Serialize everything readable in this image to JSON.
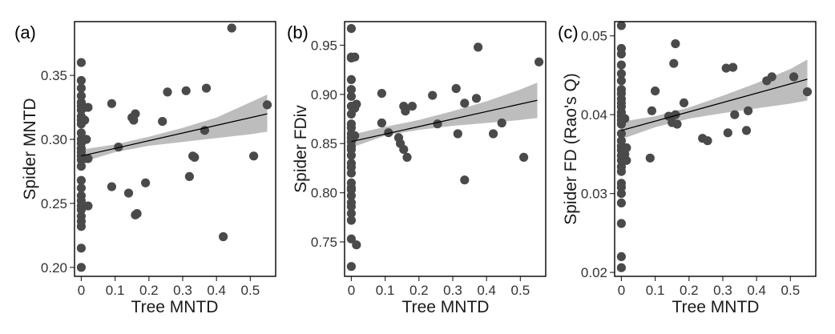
{
  "chart_data": [
    {
      "type": "scatter",
      "panel_label": "(a)",
      "xlabel": "Tree MNTD",
      "ylabel": "Spider MNTD",
      "xlim": [
        -0.02,
        0.575
      ],
      "ylim": [
        0.193,
        0.392
      ],
      "x_ticks": [
        0,
        0.1,
        0.2,
        0.3,
        0.4,
        0.5
      ],
      "x_tick_labels": [
        "0",
        "0.1",
        "0.2",
        "0.3",
        "0.4",
        "0.5"
      ],
      "y_ticks": [
        0.2,
        0.25,
        0.3,
        0.35
      ],
      "y_tick_labels": [
        "0.20",
        "0.25",
        "0.30",
        "0.35"
      ],
      "trend": {
        "x": [
          0,
          0.55
        ],
        "y": [
          0.287,
          0.32
        ]
      },
      "ci_band": {
        "x": [
          0,
          0.1,
          0.2,
          0.3,
          0.4,
          0.5,
          0.55
        ],
        "lower": [
          0.282,
          0.29,
          0.295,
          0.298,
          0.301,
          0.304,
          0.306
        ],
        "upper": [
          0.292,
          0.296,
          0.302,
          0.309,
          0.317,
          0.329,
          0.335
        ]
      },
      "points": {
        "x": [
          0,
          0,
          0,
          0,
          0,
          0,
          0,
          0,
          0,
          0,
          0,
          0,
          0,
          0,
          0,
          0,
          0,
          0,
          0,
          0,
          0,
          0,
          0,
          0,
          0,
          0,
          0,
          0,
          0,
          0.01,
          0.01,
          0.02,
          0.015,
          0.01,
          0.02,
          0.02,
          0.09,
          0.11,
          0.09,
          0.14,
          0.16,
          0.15,
          0.155,
          0.165,
          0.16,
          0.165,
          0.19,
          0.24,
          0.255,
          0.31,
          0.32,
          0.335,
          0.33,
          0.37,
          0.365,
          0.42,
          0.445,
          0.51,
          0.55
        ],
        "y": [
          0.36,
          0.346,
          0.34,
          0.334,
          0.329,
          0.326,
          0.323,
          0.318,
          0.315,
          0.312,
          0.305,
          0.3,
          0.297,
          0.293,
          0.29,
          0.287,
          0.284,
          0.279,
          0.268,
          0.262,
          0.256,
          0.252,
          0.248,
          0.245,
          0.24,
          0.236,
          0.232,
          0.215,
          0.2,
          0.325,
          0.315,
          0.325,
          0.3,
          0.285,
          0.285,
          0.248,
          0.328,
          0.294,
          0.263,
          0.258,
          0.32,
          0.317,
          0.315,
          0.242,
          0.241,
          0.242,
          0.266,
          0.314,
          0.337,
          0.338,
          0.271,
          0.286,
          0.287,
          0.34,
          0.307,
          0.224,
          0.387,
          0.287,
          0.327
        ]
      }
    },
    {
      "type": "scatter",
      "panel_label": "(b)",
      "xlabel": "Tree MNTD",
      "ylabel": "Spider FDiv",
      "xlim": [
        -0.02,
        0.575
      ],
      "ylim": [
        0.715,
        0.974
      ],
      "x_ticks": [
        0,
        0.1,
        0.2,
        0.3,
        0.4,
        0.5
      ],
      "x_tick_labels": [
        "0",
        "0.1",
        "0.2",
        "0.3",
        "0.4",
        "0.5"
      ],
      "y_ticks": [
        0.75,
        0.8,
        0.85,
        0.9,
        0.95
      ],
      "y_tick_labels": [
        "0.75",
        "0.80",
        "0.85",
        "0.90",
        "0.95"
      ],
      "trend": {
        "x": [
          0,
          0.55
        ],
        "y": [
          0.852,
          0.894
        ]
      },
      "ci_band": {
        "x": [
          0,
          0.1,
          0.2,
          0.3,
          0.4,
          0.5,
          0.55
        ],
        "lower": [
          0.846,
          0.858,
          0.864,
          0.868,
          0.871,
          0.874,
          0.876
        ],
        "upper": [
          0.859,
          0.867,
          0.874,
          0.883,
          0.893,
          0.905,
          0.912
        ]
      },
      "points": {
        "x": [
          0,
          0,
          0,
          0,
          0,
          0,
          0,
          0,
          0,
          0,
          0,
          0,
          0,
          0,
          0,
          0,
          0,
          0,
          0,
          0,
          0,
          0,
          0,
          0,
          0,
          0,
          0,
          0,
          0,
          0.01,
          0.015,
          0.01,
          0.01,
          0.015,
          0.09,
          0.09,
          0.11,
          0.14,
          0.145,
          0.155,
          0.16,
          0.155,
          0.165,
          0.18,
          0.24,
          0.255,
          0.31,
          0.315,
          0.335,
          0.335,
          0.37,
          0.375,
          0.42,
          0.445,
          0.51,
          0.555
        ],
        "y": [
          0.967,
          0.938,
          0.937,
          0.915,
          0.905,
          0.898,
          0.888,
          0.88,
          0.87,
          0.866,
          0.86,
          0.856,
          0.852,
          0.847,
          0.844,
          0.838,
          0.83,
          0.826,
          0.82,
          0.81,
          0.803,
          0.797,
          0.79,
          0.786,
          0.779,
          0.772,
          0.753,
          0.725,
          0.805,
          0.938,
          0.89,
          0.886,
          0.858,
          0.747,
          0.901,
          0.871,
          0.861,
          0.856,
          0.85,
          0.888,
          0.883,
          0.844,
          0.836,
          0.888,
          0.899,
          0.87,
          0.906,
          0.86,
          0.891,
          0.813,
          0.896,
          0.948,
          0.86,
          0.871,
          0.836,
          0.933
        ]
      }
    },
    {
      "type": "scatter",
      "panel_label": "(c)",
      "xlabel": "Tree MNTD",
      "ylabel": "Spider FD (Rao's Q)",
      "xlim": [
        -0.02,
        0.575
      ],
      "ylim": [
        0.0195,
        0.0518
      ],
      "x_ticks": [
        0,
        0.1,
        0.2,
        0.3,
        0.4,
        0.5
      ],
      "x_tick_labels": [
        "0",
        "0.1",
        "0.2",
        "0.3",
        "0.4",
        "0.5"
      ],
      "y_ticks": [
        0.02,
        0.03,
        0.04,
        0.05
      ],
      "y_tick_labels": [
        "0.02",
        "0.03",
        "0.04",
        "0.05"
      ],
      "trend": {
        "x": [
          0,
          0.55
        ],
        "y": [
          0.038,
          0.0445
        ]
      },
      "ci_band": {
        "x": [
          0,
          0.1,
          0.2,
          0.3,
          0.4,
          0.5,
          0.55
        ],
        "lower": [
          0.0369,
          0.0384,
          0.0395,
          0.0402,
          0.0408,
          0.0414,
          0.0418
        ],
        "upper": [
          0.0391,
          0.0398,
          0.0409,
          0.0424,
          0.044,
          0.0458,
          0.047
        ]
      },
      "points": {
        "x": [
          0,
          0,
          0,
          0,
          0,
          0,
          0,
          0,
          0,
          0,
          0,
          0,
          0,
          0,
          0,
          0,
          0,
          0,
          0,
          0,
          0,
          0,
          0,
          0,
          0,
          0,
          0,
          0,
          0,
          0,
          0.01,
          0.015,
          0.01,
          0.015,
          0.085,
          0.09,
          0.1,
          0.14,
          0.15,
          0.155,
          0.16,
          0.16,
          0.165,
          0.185,
          0.24,
          0.255,
          0.31,
          0.315,
          0.33,
          0.335,
          0.37,
          0.375,
          0.43,
          0.445,
          0.51,
          0.55
        ],
        "y": [
          0.0513,
          0.0484,
          0.0477,
          0.0463,
          0.0452,
          0.0443,
          0.0432,
          0.0427,
          0.042,
          0.0415,
          0.041,
          0.0403,
          0.0398,
          0.0393,
          0.0388,
          0.0376,
          0.0367,
          0.036,
          0.0355,
          0.0348,
          0.0342,
          0.0334,
          0.0328,
          0.0313,
          0.0308,
          0.03,
          0.0288,
          0.0262,
          0.022,
          0.0206,
          0.0395,
          0.0358,
          0.035,
          0.0342,
          0.0345,
          0.0405,
          0.043,
          0.0398,
          0.039,
          0.0465,
          0.049,
          0.04,
          0.0388,
          0.0415,
          0.037,
          0.0367,
          0.0459,
          0.0377,
          0.046,
          0.04,
          0.038,
          0.0405,
          0.0443,
          0.0448,
          0.0448,
          0.0429
        ]
      }
    }
  ]
}
